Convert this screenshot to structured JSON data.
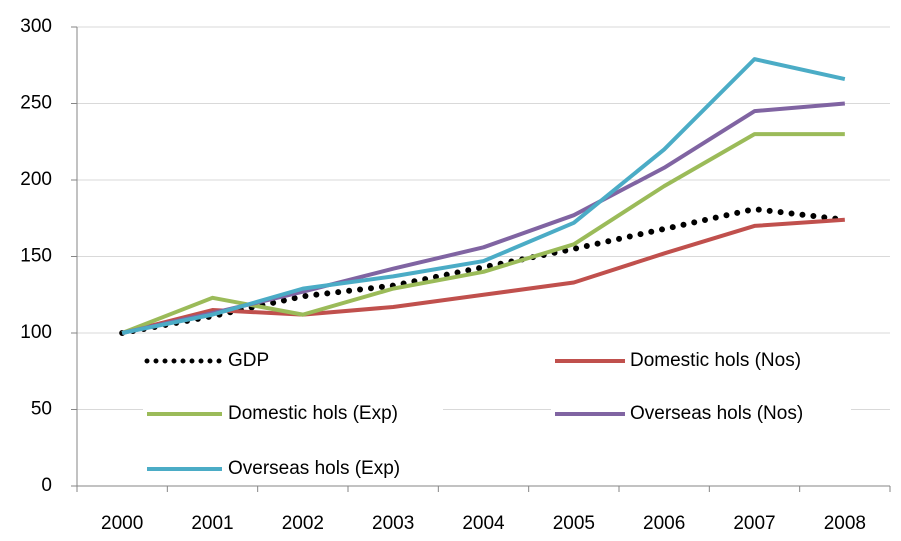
{
  "chart_data": {
    "type": "line",
    "categories": [
      "2000",
      "2001",
      "2002",
      "2003",
      "2004",
      "2005",
      "2006",
      "2007",
      "2008"
    ],
    "series": [
      {
        "name": "GDP",
        "color": "#000000",
        "dash": "dotted",
        "values": [
          100,
          111,
          124,
          131,
          143,
          155,
          168,
          181,
          174
        ]
      },
      {
        "name": "Domestic hols (Nos)",
        "color": "#c0504d",
        "values": [
          100,
          115,
          112,
          117,
          125,
          133,
          152,
          170,
          174
        ]
      },
      {
        "name": "Domestic hols (Exp)",
        "color": "#9bbb59",
        "values": [
          100,
          123,
          112,
          129,
          140,
          158,
          196,
          230,
          230
        ]
      },
      {
        "name": "Overseas hols (Nos)",
        "color": "#8064a2",
        "values": [
          100,
          113,
          127,
          142,
          156,
          177,
          208,
          245,
          250
        ]
      },
      {
        "name": "Overseas hols (Exp)",
        "color": "#4bacc6",
        "values": [
          100,
          112,
          129,
          137,
          147,
          172,
          220,
          279,
          266
        ]
      }
    ],
    "ylim": [
      0,
      300
    ],
    "yticks": [
      0,
      50,
      100,
      150,
      200,
      250,
      300
    ],
    "grid": true,
    "legend": "inside-bottom"
  }
}
